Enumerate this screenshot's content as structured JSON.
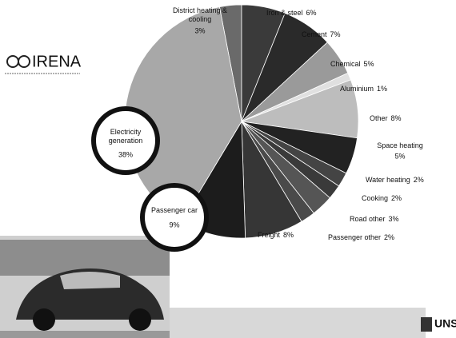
{
  "chart_data": {
    "type": "pie",
    "categories": [
      "District heating & cooling",
      "Iron & steel",
      "Cement",
      "Chemical",
      "Aluminium",
      "Other",
      "Space heating",
      "Water heating",
      "Cooking",
      "Road other",
      "Passenger other",
      "Freight",
      "Passenger car",
      "Electricity generation"
    ],
    "values": [
      3,
      6,
      7,
      5,
      1,
      8,
      5,
      2,
      2,
      3,
      2,
      8,
      9,
      38
    ],
    "value_labels": [
      "3%",
      "6%",
      "7%",
      "5%",
      "1%",
      "8%",
      "5%",
      "2%",
      "2%",
      "3%",
      "2%",
      "8%",
      "9%",
      "38%"
    ],
    "colors": [
      "#6a6a6a",
      "#3a3a3a",
      "#2a2a2a",
      "#9a9a9a",
      "#e0e0e0",
      "#bdbdbd",
      "#222222",
      "#444444",
      "#3a3a3a",
      "#555555",
      "#4a4a4a",
      "#363636",
      "#1c1c1c",
      "#a8a8a8"
    ]
  },
  "logos": {
    "left": "IRENA",
    "right": "UNS"
  }
}
